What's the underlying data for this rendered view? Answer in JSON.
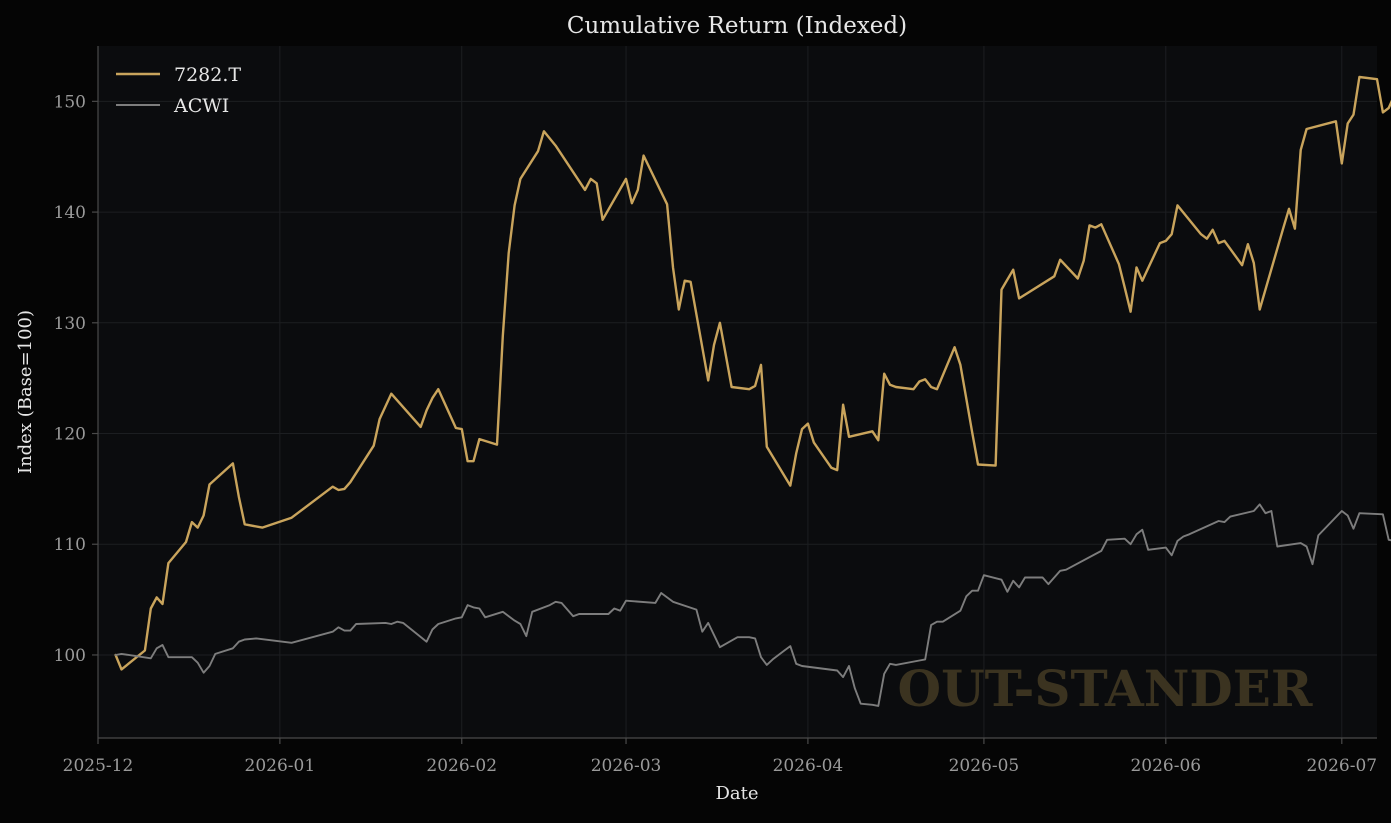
{
  "chart_data": {
    "type": "line",
    "title": "Cumulative Return (Indexed)",
    "xlabel": "Date",
    "ylabel": "Index (Base=100)",
    "ylim": [
      92.5,
      155
    ],
    "xlim": [
      "2025-12-01",
      "2026-07-07"
    ],
    "x_ticks": [
      "2025-12",
      "2026-01",
      "2026-02",
      "2026-03",
      "2026-04",
      "2026-05",
      "2026-06",
      "2026-07"
    ],
    "y_ticks": [
      100,
      110,
      120,
      130,
      140,
      150
    ],
    "grid": true,
    "legend_position": "top-left",
    "watermark": "OUT-STANDER",
    "colors": {
      "background": "#050505",
      "plot_background": "#0b0c0e",
      "axis": "#4a4a4a",
      "tick_text": "#9a9a9a",
      "label_text": "#e6e6e6",
      "grid": "#1c1e21",
      "watermark": "#3b3320"
    },
    "series": [
      {
        "name": "7282.T",
        "color": "#c9a45c",
        "points": [
          [
            "2025-12-04",
            100.0
          ],
          [
            "2025-12-05",
            98.7
          ],
          [
            "2025-12-09",
            100.4
          ],
          [
            "2025-12-10",
            104.2
          ],
          [
            "2025-12-11",
            105.2
          ],
          [
            "2025-12-12",
            104.6
          ],
          [
            "2025-12-13",
            108.3
          ],
          [
            "2025-12-16",
            110.2
          ],
          [
            "2025-12-17",
            112.0
          ],
          [
            "2025-12-18",
            111.5
          ],
          [
            "2025-12-19",
            112.6
          ],
          [
            "2025-12-20",
            115.4
          ],
          [
            "2025-12-24",
            117.3
          ],
          [
            "2025-12-25",
            114.3
          ],
          [
            "2025-12-26",
            111.8
          ],
          [
            "2025-12-29",
            111.5
          ],
          [
            "2026-01-03",
            112.4
          ],
          [
            "2026-01-10",
            115.2
          ],
          [
            "2026-01-11",
            114.9
          ],
          [
            "2026-01-12",
            115.0
          ],
          [
            "2026-01-13",
            115.6
          ],
          [
            "2026-01-17",
            118.9
          ],
          [
            "2026-01-18",
            121.3
          ],
          [
            "2026-01-20",
            123.6
          ],
          [
            "2026-01-25",
            120.6
          ],
          [
            "2026-01-26",
            122.1
          ],
          [
            "2026-01-27",
            123.2
          ],
          [
            "2026-01-28",
            124.0
          ],
          [
            "2026-01-31",
            120.5
          ],
          [
            "2026-02-01",
            120.4
          ],
          [
            "2026-02-02",
            117.5
          ],
          [
            "2026-02-03",
            117.5
          ],
          [
            "2026-02-04",
            119.5
          ],
          [
            "2026-02-07",
            119.0
          ],
          [
            "2026-02-08",
            128.8
          ],
          [
            "2026-02-09",
            136.3
          ],
          [
            "2026-02-10",
            140.6
          ],
          [
            "2026-02-11",
            143.0
          ],
          [
            "2026-02-14",
            145.5
          ],
          [
            "2026-02-15",
            147.3
          ],
          [
            "2026-02-17",
            146.0
          ],
          [
            "2026-02-22",
            142.0
          ],
          [
            "2026-02-23",
            143.0
          ],
          [
            "2026-02-24",
            142.6
          ],
          [
            "2026-02-25",
            139.3
          ],
          [
            "2026-03-01",
            143.0
          ],
          [
            "2026-03-02",
            140.8
          ],
          [
            "2026-03-03",
            142.0
          ],
          [
            "2026-03-04",
            145.1
          ],
          [
            "2026-03-08",
            140.7
          ],
          [
            "2026-03-09",
            135.0
          ],
          [
            "2026-03-10",
            131.2
          ],
          [
            "2026-03-11",
            133.8
          ],
          [
            "2026-03-12",
            133.7
          ],
          [
            "2026-03-15",
            124.8
          ],
          [
            "2026-03-16",
            128.0
          ],
          [
            "2026-03-17",
            130.0
          ],
          [
            "2026-03-19",
            124.2
          ],
          [
            "2026-03-22",
            124.0
          ],
          [
            "2026-03-23",
            124.3
          ],
          [
            "2026-03-24",
            126.2
          ],
          [
            "2026-03-25",
            118.8
          ],
          [
            "2026-03-29",
            115.3
          ],
          [
            "2026-03-30",
            118.2
          ],
          [
            "2026-03-31",
            120.4
          ],
          [
            "2026-04-01",
            120.9
          ],
          [
            "2026-04-02",
            119.2
          ],
          [
            "2026-04-05",
            116.9
          ],
          [
            "2026-04-06",
            116.7
          ],
          [
            "2026-04-07",
            122.6
          ],
          [
            "2026-04-08",
            119.7
          ],
          [
            "2026-04-12",
            120.2
          ],
          [
            "2026-04-13",
            119.4
          ],
          [
            "2026-04-14",
            125.4
          ],
          [
            "2026-04-15",
            124.4
          ],
          [
            "2026-04-16",
            124.2
          ],
          [
            "2026-04-19",
            124.0
          ],
          [
            "2026-04-20",
            124.7
          ],
          [
            "2026-04-21",
            124.9
          ],
          [
            "2026-04-22",
            124.2
          ],
          [
            "2026-04-23",
            124.0
          ],
          [
            "2026-04-26",
            127.8
          ],
          [
            "2026-04-27",
            126.2
          ],
          [
            "2026-04-29",
            120.1
          ],
          [
            "2026-04-30",
            117.2
          ],
          [
            "2026-05-03",
            117.1
          ],
          [
            "2026-05-04",
            133.0
          ],
          [
            "2026-05-06",
            134.8
          ],
          [
            "2026-05-07",
            132.2
          ],
          [
            "2026-05-13",
            134.2
          ],
          [
            "2026-05-14",
            135.7
          ],
          [
            "2026-05-17",
            134.0
          ],
          [
            "2026-05-18",
            135.6
          ],
          [
            "2026-05-19",
            138.8
          ],
          [
            "2026-05-20",
            138.6
          ],
          [
            "2026-05-21",
            138.9
          ],
          [
            "2026-05-24",
            135.3
          ],
          [
            "2026-05-25",
            133.2
          ],
          [
            "2026-05-26",
            131.0
          ],
          [
            "2026-05-27",
            135.0
          ],
          [
            "2026-05-28",
            133.8
          ],
          [
            "2026-05-31",
            137.2
          ],
          [
            "2026-06-01",
            137.4
          ],
          [
            "2026-06-02",
            138.0
          ],
          [
            "2026-06-03",
            140.6
          ],
          [
            "2026-06-07",
            138.0
          ],
          [
            "2026-06-08",
            137.6
          ],
          [
            "2026-06-09",
            138.4
          ],
          [
            "2026-06-10",
            137.2
          ],
          [
            "2026-06-11",
            137.4
          ],
          [
            "2026-06-14",
            135.2
          ],
          [
            "2026-06-15",
            137.1
          ],
          [
            "2026-06-16",
            135.4
          ],
          [
            "2026-06-17",
            131.2
          ],
          [
            "2026-06-21",
            138.5
          ],
          [
            "2026-06-22",
            140.3
          ],
          [
            "2026-06-23",
            138.5
          ],
          [
            "2026-06-24",
            145.6
          ],
          [
            "2026-06-25",
            147.5
          ],
          [
            "2026-06-30",
            148.2
          ],
          [
            "2026-07-01",
            144.4
          ],
          [
            "2026-07-02",
            148.0
          ],
          [
            "2026-07-03",
            148.8
          ],
          [
            "2026-07-04",
            152.2
          ],
          [
            "2026-07-07",
            152.0
          ],
          [
            "2026-07-08",
            149.0
          ],
          [
            "2026-07-09",
            149.4
          ],
          [
            "2026-07-10",
            150.6
          ]
        ]
      },
      {
        "name": "ACWI",
        "color": "#7d7d7d",
        "points": [
          [
            "2025-12-04",
            100.0
          ],
          [
            "2025-12-05",
            100.1
          ],
          [
            "2025-12-10",
            99.7
          ],
          [
            "2025-12-11",
            100.6
          ],
          [
            "2025-12-12",
            100.9
          ],
          [
            "2025-12-13",
            99.8
          ],
          [
            "2025-12-17",
            99.8
          ],
          [
            "2025-12-18",
            99.3
          ],
          [
            "2025-12-19",
            98.4
          ],
          [
            "2025-12-20",
            99.0
          ],
          [
            "2025-12-21",
            100.1
          ],
          [
            "2025-12-24",
            100.6
          ],
          [
            "2025-12-25",
            101.2
          ],
          [
            "2025-12-26",
            101.4
          ],
          [
            "2025-12-28",
            101.5
          ],
          [
            "2026-01-03",
            101.1
          ],
          [
            "2026-01-10",
            102.1
          ],
          [
            "2026-01-11",
            102.5
          ],
          [
            "2026-01-12",
            102.2
          ],
          [
            "2026-01-13",
            102.2
          ],
          [
            "2026-01-14",
            102.8
          ],
          [
            "2026-01-19",
            102.9
          ],
          [
            "2026-01-20",
            102.8
          ],
          [
            "2026-01-21",
            103.0
          ],
          [
            "2026-01-22",
            102.9
          ],
          [
            "2026-01-26",
            101.2
          ],
          [
            "2026-01-27",
            102.3
          ],
          [
            "2026-01-28",
            102.8
          ],
          [
            "2026-01-31",
            103.3
          ],
          [
            "2026-02-01",
            103.4
          ],
          [
            "2026-02-02",
            104.5
          ],
          [
            "2026-02-03",
            104.3
          ],
          [
            "2026-02-04",
            104.2
          ],
          [
            "2026-02-05",
            103.4
          ],
          [
            "2026-02-08",
            103.9
          ],
          [
            "2026-02-10",
            103.1
          ],
          [
            "2026-02-11",
            102.8
          ],
          [
            "2026-02-12",
            101.7
          ],
          [
            "2026-02-13",
            103.9
          ],
          [
            "2026-02-16",
            104.5
          ],
          [
            "2026-02-17",
            104.8
          ],
          [
            "2026-02-18",
            104.7
          ],
          [
            "2026-02-20",
            103.5
          ],
          [
            "2026-02-21",
            103.7
          ],
          [
            "2026-02-24",
            103.7
          ],
          [
            "2026-02-26",
            103.7
          ],
          [
            "2026-02-27",
            104.2
          ],
          [
            "2026-02-28",
            104.0
          ],
          [
            "2026-03-01",
            104.9
          ],
          [
            "2026-03-06",
            104.7
          ],
          [
            "2026-03-07",
            105.6
          ],
          [
            "2026-03-08",
            105.2
          ],
          [
            "2026-03-09",
            104.8
          ],
          [
            "2026-03-13",
            104.1
          ],
          [
            "2026-03-14",
            102.1
          ],
          [
            "2026-03-15",
            102.9
          ],
          [
            "2026-03-17",
            100.7
          ],
          [
            "2026-03-20",
            101.6
          ],
          [
            "2026-03-22",
            101.6
          ],
          [
            "2026-03-23",
            101.5
          ],
          [
            "2026-03-24",
            99.8
          ],
          [
            "2026-03-25",
            99.1
          ],
          [
            "2026-03-26",
            99.6
          ],
          [
            "2026-03-28",
            100.4
          ],
          [
            "2026-03-29",
            100.8
          ],
          [
            "2026-03-30",
            99.2
          ],
          [
            "2026-03-31",
            99.0
          ],
          [
            "2026-04-06",
            98.6
          ],
          [
            "2026-04-07",
            98.0
          ],
          [
            "2026-04-08",
            99.0
          ],
          [
            "2026-04-09",
            97.0
          ],
          [
            "2026-04-10",
            95.6
          ],
          [
            "2026-04-12",
            95.5
          ],
          [
            "2026-04-13",
            95.4
          ],
          [
            "2026-04-14",
            98.3
          ],
          [
            "2026-04-15",
            99.2
          ],
          [
            "2026-04-16",
            99.1
          ],
          [
            "2026-04-20",
            99.5
          ],
          [
            "2026-04-21",
            99.6
          ],
          [
            "2026-04-22",
            102.7
          ],
          [
            "2026-04-23",
            103.0
          ],
          [
            "2026-04-24",
            103.0
          ],
          [
            "2026-04-27",
            104.0
          ],
          [
            "2026-04-28",
            105.3
          ],
          [
            "2026-04-29",
            105.8
          ],
          [
            "2026-04-30",
            105.8
          ],
          [
            "2026-05-01",
            107.2
          ],
          [
            "2026-05-04",
            106.8
          ],
          [
            "2026-05-05",
            105.7
          ],
          [
            "2026-05-06",
            106.7
          ],
          [
            "2026-05-07",
            106.1
          ],
          [
            "2026-05-08",
            107.0
          ],
          [
            "2026-05-11",
            107.0
          ],
          [
            "2026-05-12",
            106.4
          ],
          [
            "2026-05-14",
            107.6
          ],
          [
            "2026-05-15",
            107.7
          ],
          [
            "2026-05-21",
            109.4
          ],
          [
            "2026-05-22",
            110.4
          ],
          [
            "2026-05-25",
            110.5
          ],
          [
            "2026-05-26",
            110.0
          ],
          [
            "2026-05-27",
            110.9
          ],
          [
            "2026-05-28",
            111.3
          ],
          [
            "2026-05-29",
            109.5
          ],
          [
            "2026-06-01",
            109.7
          ],
          [
            "2026-06-02",
            109.0
          ],
          [
            "2026-06-03",
            110.3
          ],
          [
            "2026-06-04",
            110.7
          ],
          [
            "2026-06-05",
            110.9
          ],
          [
            "2026-06-10",
            112.1
          ],
          [
            "2026-06-11",
            112.0
          ],
          [
            "2026-06-12",
            112.5
          ],
          [
            "2026-06-16",
            113.0
          ],
          [
            "2026-06-17",
            113.6
          ],
          [
            "2026-06-18",
            112.8
          ],
          [
            "2026-06-19",
            113.0
          ],
          [
            "2026-06-20",
            109.8
          ],
          [
            "2026-06-24",
            110.1
          ],
          [
            "2026-06-25",
            109.8
          ],
          [
            "2026-06-26",
            108.2
          ],
          [
            "2026-06-27",
            110.8
          ],
          [
            "2026-07-01",
            113.0
          ],
          [
            "2026-07-02",
            112.6
          ],
          [
            "2026-07-03",
            111.4
          ],
          [
            "2026-07-04",
            112.8
          ],
          [
            "2026-07-08",
            112.7
          ],
          [
            "2026-07-09",
            110.4
          ],
          [
            "2026-07-10",
            110.3
          ],
          [
            "2026-07-11",
            110.7
          ],
          [
            "2026-07-12",
            110.3
          ],
          [
            "2026-07-15",
            111.5
          ],
          [
            "2026-07-16",
            112.3
          ],
          [
            "2026-07-17",
            111.7
          ],
          [
            "2026-07-18",
            111.7
          ]
        ]
      }
    ]
  }
}
